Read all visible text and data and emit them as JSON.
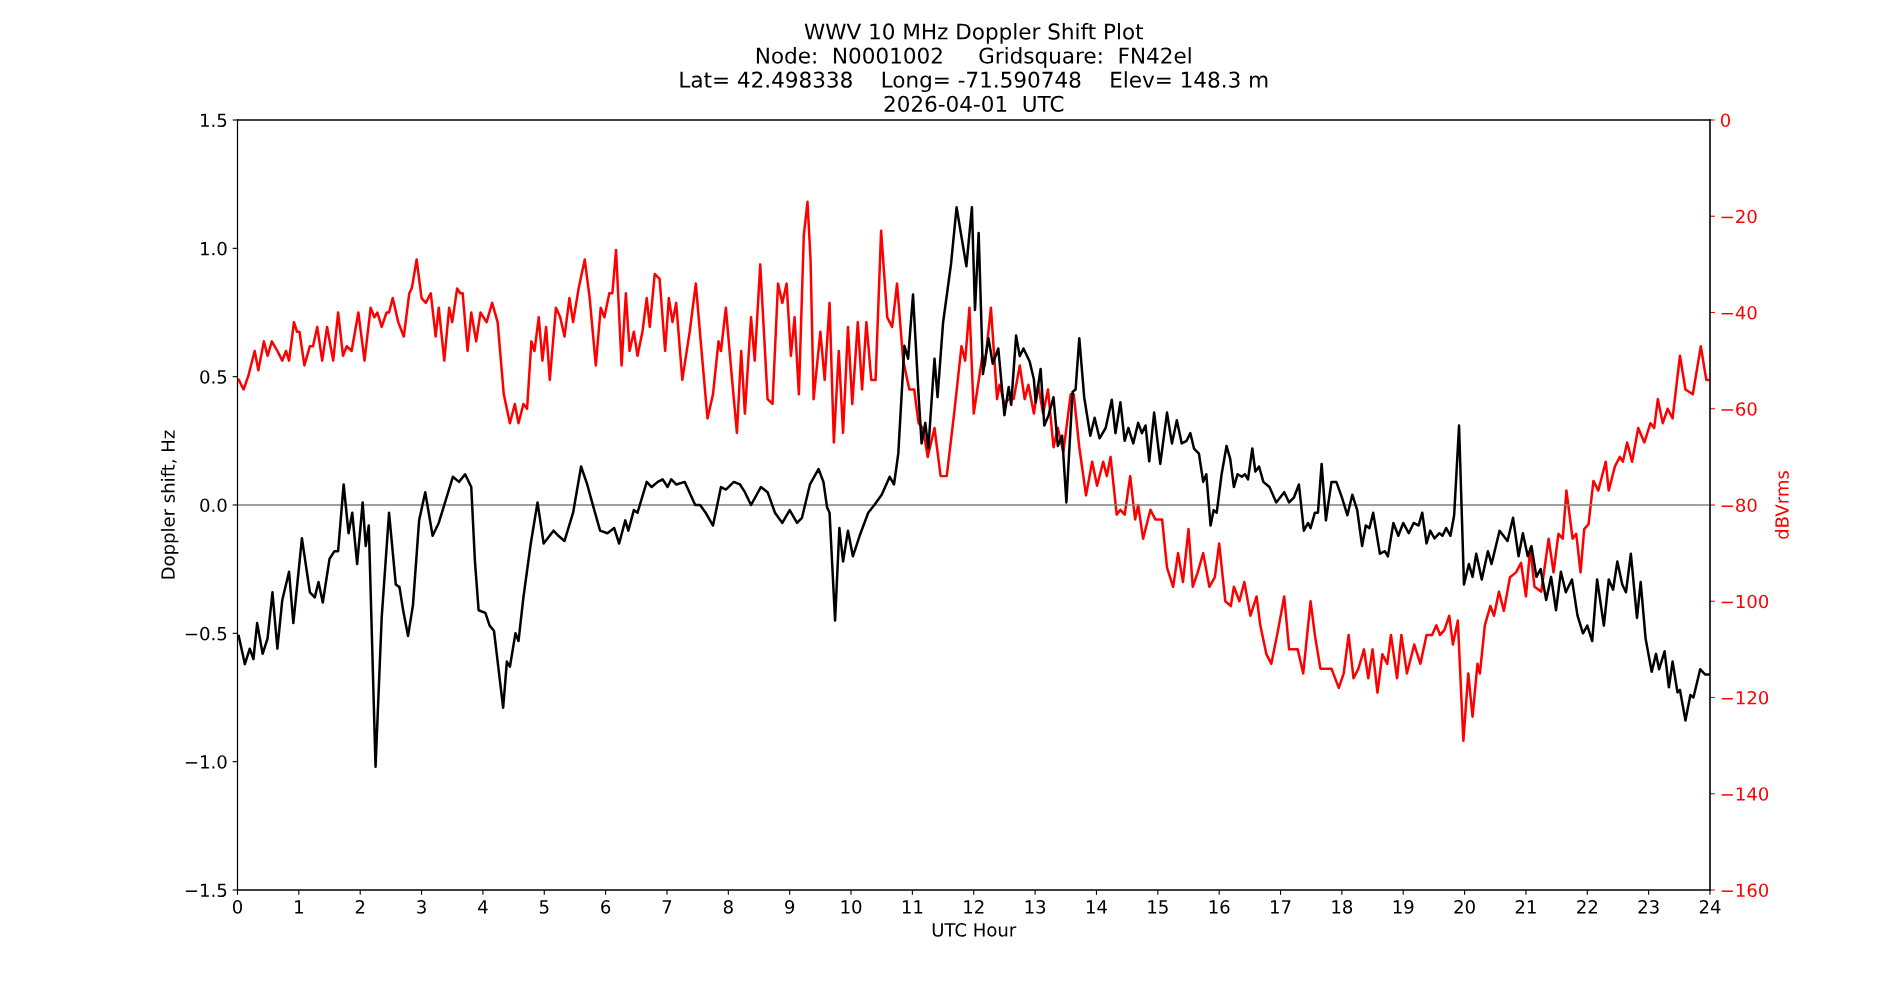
{
  "chart_data": {
    "type": "line",
    "title": "WWV 10 MHz Doppler Shift Plot\nNode:  N0001002     Gridsquare:  FN42el\nLat= 42.498338    Long= -71.590748    Elev= 148.3 m\n2026-04-01  UTC",
    "xlabel": "UTC Hour",
    "ylabel": "Doppler shift, Hz",
    "y2label": "dBVrms",
    "xlim": [
      0,
      24
    ],
    "xticks": [
      0,
      1,
      2,
      3,
      4,
      5,
      6,
      7,
      8,
      9,
      10,
      11,
      12,
      13,
      14,
      15,
      16,
      17,
      18,
      19,
      20,
      21,
      22,
      23,
      24
    ],
    "ylim": [
      -1.5,
      1.5
    ],
    "yticks": [
      {
        "value": -1.5,
        "label": "−1.5"
      },
      {
        "value": -1.0,
        "label": "−1.0"
      },
      {
        "value": -0.5,
        "label": "−0.5"
      },
      {
        "value": 0.0,
        "label": "0.0"
      },
      {
        "value": 0.5,
        "label": "0.5"
      },
      {
        "value": 1.0,
        "label": "1.0"
      },
      {
        "value": 1.5,
        "label": "1.5"
      }
    ],
    "y2lim": [
      -160,
      0
    ],
    "y2ticks": [
      {
        "value": -160,
        "label": "−160"
      },
      {
        "value": -140,
        "label": "−140"
      },
      {
        "value": -120,
        "label": "−120"
      },
      {
        "value": -100,
        "label": "−100"
      },
      {
        "value": -80,
        "label": "−80"
      },
      {
        "value": -60,
        "label": "−60"
      },
      {
        "value": -40,
        "label": "−40"
      },
      {
        "value": -20,
        "label": "−20"
      },
      0
    ],
    "grid": false,
    "legend": false,
    "ref_lines": [
      {
        "axis": "y",
        "value": 0,
        "color": "#808080"
      }
    ],
    "series": [
      {
        "color": "#000000",
        "axis": "y",
        "x": [
          0.02,
          0.12,
          0.2,
          0.26,
          0.32,
          0.41,
          0.49,
          0.57,
          0.65,
          0.73,
          0.84,
          0.91,
          1.05,
          1.18,
          1.26,
          1.32,
          1.39,
          1.5,
          1.58,
          1.64,
          1.73,
          1.81,
          1.87,
          1.95,
          2.04,
          2.09,
          2.14,
          2.25,
          2.35,
          2.47,
          2.58,
          2.64,
          2.7,
          2.78,
          2.86,
          2.96,
          3.06,
          3.18,
          3.28,
          3.37,
          3.51,
          3.61,
          3.71,
          3.81,
          3.87,
          3.93,
          4.04,
          4.11,
          4.18,
          4.23,
          4.33,
          4.39,
          4.44,
          4.53,
          4.58,
          4.66,
          4.78,
          4.89,
          4.99,
          5.15,
          5.23,
          5.33,
          5.47,
          5.6,
          5.7,
          5.78,
          5.91,
          6.03,
          6.14,
          6.22,
          6.32,
          6.37,
          6.46,
          6.52,
          6.67,
          6.75,
          6.85,
          6.93,
          7.01,
          7.07,
          7.15,
          7.29,
          7.46,
          7.54,
          7.63,
          7.75,
          7.88,
          7.96,
          8.09,
          8.19,
          8.27,
          8.37,
          8.53,
          8.64,
          8.76,
          8.88,
          9.0,
          9.12,
          9.2,
          9.33,
          9.47,
          9.55,
          9.61,
          9.65,
          9.74,
          9.81,
          9.87,
          9.95,
          10.03,
          10.14,
          10.28,
          10.38,
          10.5,
          10.63,
          10.7,
          10.77,
          10.87,
          10.93,
          11.01,
          11.1,
          11.15,
          11.21,
          11.26,
          11.36,
          11.41,
          11.5,
          11.63,
          11.72,
          11.88,
          11.97,
          12.02,
          12.08,
          12.15,
          12.24,
          12.31,
          12.4,
          12.5,
          12.57,
          12.61,
          12.69,
          12.75,
          12.81,
          12.91,
          12.98,
          13.01,
          13.09,
          13.15,
          13.22,
          13.3,
          13.37,
          13.44,
          13.51,
          13.61,
          13.66,
          13.72,
          13.8,
          13.9,
          13.97,
          14.05,
          14.15,
          14.25,
          14.31,
          14.39,
          14.46,
          14.52,
          14.6,
          14.68,
          14.74,
          14.8,
          14.86,
          14.94,
          15.04,
          15.15,
          15.23,
          15.31,
          15.39,
          15.47,
          15.53,
          15.59,
          15.67,
          15.74,
          15.79,
          15.86,
          15.91,
          15.96,
          16.04,
          16.12,
          16.18,
          16.24,
          16.3,
          16.37,
          16.42,
          16.47,
          16.54,
          16.59,
          16.65,
          16.72,
          16.82,
          16.93,
          17.06,
          17.14,
          17.22,
          17.3,
          17.38,
          17.45,
          17.49,
          17.56,
          17.61,
          17.67,
          17.74,
          17.83,
          17.91,
          18.0,
          18.09,
          18.17,
          18.25,
          18.33,
          18.39,
          18.45,
          18.51,
          18.62,
          18.7,
          18.75,
          18.84,
          18.92,
          19.0,
          19.09,
          19.17,
          19.25,
          19.31,
          19.38,
          19.44,
          19.51,
          19.59,
          19.64,
          19.7,
          19.77,
          19.83,
          19.91,
          19.99,
          20.07,
          20.13,
          20.19,
          20.28,
          20.38,
          20.44,
          20.57,
          20.7,
          20.79,
          20.88,
          20.95,
          21.03,
          21.09,
          21.17,
          21.24,
          21.33,
          21.41,
          21.49,
          21.57,
          21.65,
          21.75,
          21.84,
          21.93,
          22.0,
          22.08,
          22.16,
          22.27,
          22.35,
          22.42,
          22.49,
          22.57,
          22.63,
          22.71,
          22.81,
          22.87,
          22.95,
          23.05,
          23.12,
          23.17,
          23.26,
          23.33,
          23.39,
          23.47,
          23.51,
          23.6,
          23.68,
          23.73,
          23.84,
          23.92,
          23.98
        ],
        "values": [
          -0.51,
          -0.62,
          -0.56,
          -0.6,
          -0.46,
          -0.58,
          -0.52,
          -0.34,
          -0.56,
          -0.37,
          -0.26,
          -0.46,
          -0.13,
          -0.34,
          -0.36,
          -0.3,
          -0.38,
          -0.21,
          -0.18,
          -0.18,
          0.08,
          -0.11,
          -0.03,
          -0.23,
          0.01,
          -0.16,
          -0.08,
          -1.02,
          -0.44,
          -0.03,
          -0.31,
          -0.32,
          -0.41,
          -0.51,
          -0.39,
          -0.06,
          0.05,
          -0.12,
          -0.07,
          0.0,
          0.11,
          0.09,
          0.12,
          0.07,
          -0.22,
          -0.41,
          -0.42,
          -0.47,
          -0.49,
          -0.59,
          -0.79,
          -0.61,
          -0.63,
          -0.5,
          -0.53,
          -0.36,
          -0.15,
          0.01,
          -0.15,
          -0.1,
          -0.12,
          -0.14,
          -0.03,
          0.15,
          0.08,
          0.01,
          -0.1,
          -0.11,
          -0.09,
          -0.15,
          -0.06,
          -0.1,
          -0.02,
          -0.03,
          0.09,
          0.07,
          0.09,
          0.1,
          0.07,
          0.1,
          0.08,
          0.09,
          0.0,
          0.0,
          -0.03,
          -0.08,
          0.07,
          0.06,
          0.09,
          0.08,
          0.05,
          0.0,
          0.07,
          0.05,
          -0.03,
          -0.07,
          -0.02,
          -0.07,
          -0.05,
          0.08,
          0.14,
          0.09,
          -0.01,
          -0.03,
          -0.45,
          -0.09,
          -0.22,
          -0.1,
          -0.2,
          -0.12,
          -0.03,
          0.0,
          0.04,
          0.11,
          0.08,
          0.2,
          0.62,
          0.57,
          0.82,
          0.43,
          0.24,
          0.32,
          0.22,
          0.57,
          0.42,
          0.71,
          0.94,
          1.16,
          0.93,
          1.16,
          0.76,
          1.06,
          0.51,
          0.65,
          0.55,
          0.61,
          0.35,
          0.46,
          0.39,
          0.66,
          0.58,
          0.61,
          0.56,
          0.49,
          0.4,
          0.53,
          0.31,
          0.35,
          0.42,
          0.23,
          0.27,
          0.01,
          0.44,
          0.45,
          0.65,
          0.42,
          0.27,
          0.34,
          0.26,
          0.3,
          0.41,
          0.28,
          0.4,
          0.25,
          0.3,
          0.24,
          0.32,
          0.28,
          0.31,
          0.17,
          0.36,
          0.16,
          0.36,
          0.24,
          0.33,
          0.24,
          0.25,
          0.28,
          0.22,
          0.2,
          0.09,
          0.12,
          -0.08,
          -0.02,
          -0.03,
          0.12,
          0.23,
          0.18,
          0.07,
          0.12,
          0.11,
          0.12,
          0.1,
          0.22,
          0.13,
          0.15,
          0.09,
          0.07,
          0.01,
          0.05,
          0.01,
          0.03,
          0.08,
          -0.1,
          -0.07,
          -0.09,
          -0.03,
          -0.03,
          0.16,
          -0.06,
          0.09,
          0.09,
          0.03,
          -0.04,
          0.04,
          -0.02,
          -0.16,
          -0.08,
          -0.09,
          -0.03,
          -0.19,
          -0.18,
          -0.2,
          -0.07,
          -0.12,
          -0.07,
          -0.11,
          -0.07,
          -0.08,
          -0.03,
          -0.15,
          -0.1,
          -0.13,
          -0.11,
          -0.12,
          -0.09,
          -0.12,
          -0.04,
          0.31,
          -0.31,
          -0.23,
          -0.28,
          -0.19,
          -0.29,
          -0.18,
          -0.23,
          -0.1,
          -0.14,
          -0.05,
          -0.2,
          -0.11,
          -0.2,
          -0.16,
          -0.28,
          -0.25,
          -0.37,
          -0.28,
          -0.41,
          -0.26,
          -0.34,
          -0.29,
          -0.43,
          -0.5,
          -0.47,
          -0.53,
          -0.29,
          -0.47,
          -0.29,
          -0.33,
          -0.22,
          -0.31,
          -0.34,
          -0.19,
          -0.44,
          -0.3,
          -0.52,
          -0.65,
          -0.58,
          -0.64,
          -0.57,
          -0.71,
          -0.61,
          -0.73,
          -0.72,
          -0.84,
          -0.74,
          -0.75,
          -0.64,
          -0.66,
          -0.66
        ]
      },
      {
        "color": "#ff0000",
        "axis": "y2",
        "x": [
          0.02,
          0.1,
          0.18,
          0.28,
          0.34,
          0.43,
          0.49,
          0.56,
          0.65,
          0.73,
          0.79,
          0.84,
          0.92,
          0.97,
          1.01,
          1.09,
          1.18,
          1.23,
          1.3,
          1.38,
          1.46,
          1.56,
          1.64,
          1.72,
          1.78,
          1.86,
          1.97,
          2.07,
          2.17,
          2.23,
          2.28,
          2.35,
          2.43,
          2.47,
          2.53,
          2.62,
          2.71,
          2.8,
          2.84,
          2.92,
          3.0,
          3.07,
          3.15,
          3.23,
          3.28,
          3.37,
          3.45,
          3.5,
          3.58,
          3.63,
          3.67,
          3.75,
          3.81,
          3.89,
          3.96,
          4.06,
          4.15,
          4.24,
          4.34,
          4.44,
          4.52,
          4.58,
          4.66,
          4.72,
          4.79,
          4.84,
          4.91,
          4.97,
          5.03,
          5.09,
          5.19,
          5.26,
          5.33,
          5.41,
          5.47,
          5.56,
          5.66,
          5.74,
          5.84,
          5.92,
          5.98,
          6.06,
          6.11,
          6.17,
          6.26,
          6.33,
          6.39,
          6.46,
          6.52,
          6.6,
          6.67,
          6.72,
          6.8,
          6.88,
          6.97,
          7.03,
          7.09,
          7.15,
          7.25,
          7.37,
          7.47,
          7.55,
          7.66,
          7.75,
          7.84,
          7.88,
          7.96,
          8.04,
          8.14,
          8.21,
          8.27,
          8.37,
          8.43,
          8.52,
          8.64,
          8.72,
          8.81,
          8.88,
          8.95,
          9.02,
          9.08,
          9.15,
          9.23,
          9.29,
          9.34,
          9.39,
          9.5,
          9.57,
          9.65,
          9.72,
          9.8,
          9.87,
          9.95,
          10.02,
          10.11,
          10.18,
          10.25,
          10.33,
          10.4,
          10.49,
          10.59,
          10.67,
          10.75,
          10.85,
          10.95,
          11.03,
          11.1,
          11.17,
          11.25,
          11.36,
          11.46,
          11.56,
          11.68,
          11.8,
          11.86,
          11.93,
          12.0,
          12.14,
          12.18,
          12.28,
          12.38,
          12.42,
          12.5,
          12.57,
          12.65,
          12.75,
          12.83,
          12.89,
          12.98,
          13.05,
          13.13,
          13.21,
          13.3,
          13.37,
          13.46,
          13.58,
          13.63,
          13.72,
          13.83,
          13.93,
          14.01,
          14.11,
          14.17,
          14.23,
          14.33,
          14.39,
          14.46,
          14.55,
          14.63,
          14.68,
          14.76,
          14.88,
          14.96,
          15.07,
          15.15,
          15.25,
          15.33,
          15.41,
          15.5,
          15.57,
          15.65,
          15.74,
          15.84,
          15.93,
          16.0,
          16.1,
          16.19,
          16.24,
          16.33,
          16.41,
          16.51,
          16.61,
          16.67,
          16.77,
          16.85,
          16.96,
          17.06,
          17.14,
          17.22,
          17.28,
          17.37,
          17.49,
          17.56,
          17.65,
          17.75,
          17.83,
          17.95,
          18.03,
          18.11,
          18.19,
          18.27,
          18.36,
          18.43,
          18.5,
          18.58,
          18.66,
          18.74,
          18.8,
          18.9,
          18.97,
          19.06,
          19.18,
          19.28,
          19.38,
          19.47,
          19.54,
          19.6,
          19.67,
          19.75,
          19.81,
          19.89,
          19.98,
          20.06,
          20.13,
          20.21,
          20.25,
          20.33,
          20.42,
          20.48,
          20.56,
          20.64,
          20.74,
          20.84,
          20.92,
          21.0,
          21.07,
          21.14,
          21.25,
          21.37,
          21.45,
          21.53,
          21.6,
          21.66,
          21.76,
          21.82,
          21.89,
          21.95,
          22.02,
          22.1,
          22.18,
          22.3,
          22.35,
          22.45,
          22.53,
          22.58,
          22.65,
          22.73,
          22.83,
          22.93,
          23.03,
          23.09,
          23.15,
          23.23,
          23.31,
          23.39,
          23.51,
          23.6,
          23.72,
          23.85,
          23.94,
          23.98
        ],
        "values": [
          -54,
          -56,
          -53,
          -48,
          -52,
          -46,
          -49,
          -46,
          -48,
          -50,
          -48,
          -50,
          -42,
          -44,
          -44,
          -51,
          -47,
          -47,
          -43,
          -50,
          -43,
          -50,
          -40,
          -49,
          -47,
          -48,
          -40,
          -50,
          -39,
          -41,
          -40,
          -43,
          -40,
          -40,
          -37,
          -42,
          -45,
          -36,
          -35,
          -29,
          -37,
          -38,
          -36,
          -45,
          -39,
          -50,
          -39,
          -42,
          -35,
          -36,
          -36,
          -48,
          -40,
          -46,
          -40,
          -42,
          -38,
          -42,
          -57,
          -63,
          -59,
          -63,
          -59,
          -60,
          -46,
          -48,
          -41,
          -50,
          -43,
          -54,
          -39,
          -41,
          -45,
          -37,
          -42,
          -35,
          -29,
          -37,
          -51,
          -39,
          -41,
          -36,
          -36,
          -27,
          -51,
          -36,
          -48,
          -44,
          -49,
          -44,
          -37,
          -43,
          -32,
          -33,
          -48,
          -37,
          -42,
          -38,
          -54,
          -44,
          -34,
          -46,
          -62,
          -57,
          -46,
          -48,
          -39,
          -51,
          -65,
          -48,
          -61,
          -41,
          -50,
          -30,
          -58,
          -59,
          -34,
          -38,
          -34,
          -49,
          -41,
          -57,
          -24,
          -17,
          -29,
          -58,
          -44,
          -54,
          -38,
          -67,
          -48,
          -65,
          -43,
          -59,
          -42,
          -56,
          -42,
          -54,
          -54,
          -23,
          -41,
          -43,
          -34,
          -50,
          -56,
          -56,
          -63,
          -64,
          -70,
          -64,
          -74,
          -74,
          -61,
          -47,
          -50,
          -39,
          -61,
          -49,
          -51,
          -39,
          -58,
          -55,
          -59,
          -58,
          -58,
          -51,
          -58,
          -55,
          -61,
          -55,
          -61,
          -56,
          -68,
          -64,
          -69,
          -57,
          -57,
          -68,
          -78,
          -71,
          -76,
          -71,
          -74,
          -70,
          -82,
          -81,
          -82,
          -74,
          -83,
          -80,
          -87,
          -81,
          -83,
          -83,
          -93,
          -97,
          -90,
          -96,
          -85,
          -97,
          -94,
          -90,
          -97,
          -95,
          -88,
          -100,
          -101,
          -97,
          -100,
          -96,
          -103,
          -99,
          -105,
          -111,
          -113,
          -106,
          -99,
          -110,
          -110,
          -110,
          -115,
          -100,
          -107,
          -114,
          -114,
          -114,
          -118,
          -115,
          -107,
          -116,
          -114,
          -110,
          -116,
          -110,
          -119,
          -111,
          -113,
          -107,
          -116,
          -107,
          -115,
          -109,
          -113,
          -107,
          -107,
          -105,
          -107,
          -106,
          -103,
          -109,
          -104,
          -129,
          -115,
          -124,
          -113,
          -115,
          -105,
          -101,
          -103,
          -98,
          -102,
          -95,
          -94,
          -92,
          -99,
          -89,
          -97,
          -98,
          -87,
          -94,
          -86,
          -87,
          -77,
          -87,
          -86,
          -94,
          -85,
          -84,
          -75,
          -77,
          -71,
          -77,
          -72,
          -70,
          -71,
          -67,
          -71,
          -64,
          -67,
          -63,
          -64,
          -58,
          -63,
          -60,
          -62,
          -49,
          -56,
          -57,
          -47,
          -54,
          -54
        ]
      }
    ]
  }
}
